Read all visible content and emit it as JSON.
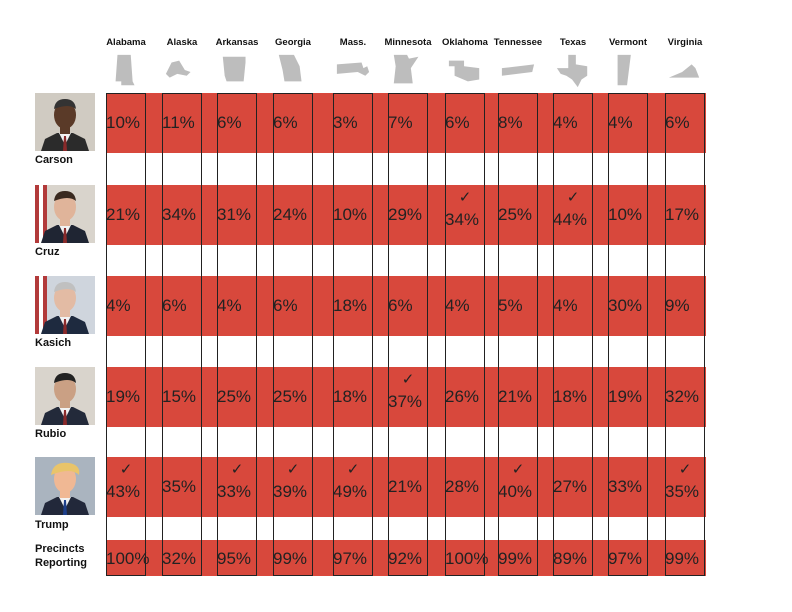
{
  "chart_data": {
    "type": "table",
    "states": [
      "Alabama",
      "Alaska",
      "Arkansas",
      "Georgia",
      "Mass.",
      "Minnesota",
      "Oklahoma",
      "Tennessee",
      "Texas",
      "Vermont",
      "Virginia"
    ],
    "candidates": [
      {
        "name": "Carson",
        "values": [
          "10%",
          "11%",
          "6%",
          "6%",
          "3%",
          "7%",
          "6%",
          "8%",
          "4%",
          "4%",
          "6%"
        ],
        "wins": []
      },
      {
        "name": "Cruz",
        "values": [
          "21%",
          "34%",
          "31%",
          "24%",
          "10%",
          "29%",
          "34%",
          "25%",
          "44%",
          "10%",
          "17%"
        ],
        "wins": [
          6,
          8
        ]
      },
      {
        "name": "Kasich",
        "values": [
          "4%",
          "6%",
          "4%",
          "6%",
          "18%",
          "6%",
          "4%",
          "5%",
          "4%",
          "30%",
          "9%"
        ],
        "wins": []
      },
      {
        "name": "Rubio",
        "values": [
          "19%",
          "15%",
          "25%",
          "25%",
          "18%",
          "37%",
          "26%",
          "21%",
          "18%",
          "19%",
          "32%"
        ],
        "wins": [
          5
        ]
      },
      {
        "name": "Trump",
        "values": [
          "43%",
          "35%",
          "33%",
          "39%",
          "49%",
          "21%",
          "28%",
          "40%",
          "27%",
          "33%",
          "35%"
        ],
        "wins": [
          0,
          2,
          3,
          4,
          7,
          10
        ]
      }
    ],
    "precincts_label": "Precincts Reporting",
    "precincts": [
      "100%",
      "32%",
      "95%",
      "99%",
      "97%",
      "92%",
      "100%",
      "99%",
      "89%",
      "97%",
      "99%"
    ],
    "check_mark": "✓",
    "colors": {
      "band": "#d8483c",
      "text": "#222222",
      "map": "#bdbdbd",
      "outline": "#222222"
    }
  }
}
